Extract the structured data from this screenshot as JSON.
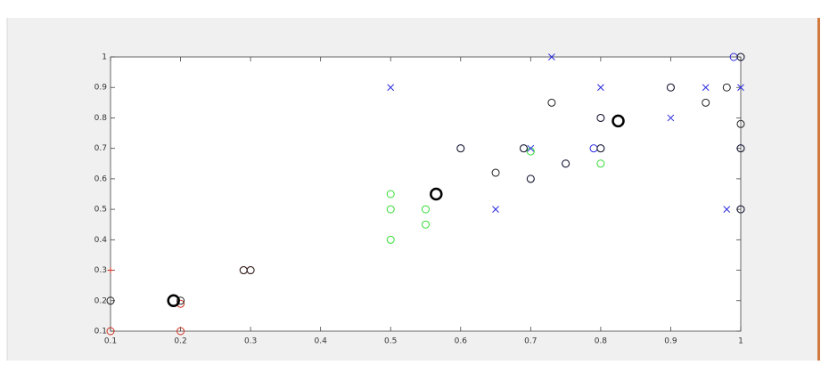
{
  "chart_data": {
    "type": "scatter",
    "xlim": [
      0.1,
      1
    ],
    "ylim": [
      0.1,
      1
    ],
    "xticks": [
      0.1,
      0.2,
      0.3,
      0.4,
      0.5,
      0.6,
      0.7,
      0.8,
      0.9,
      1
    ],
    "yticks": [
      0.1,
      0.2,
      0.3,
      0.4,
      0.5,
      0.6,
      0.7,
      0.8,
      0.9,
      1
    ],
    "grid": false,
    "series": [
      {
        "color": "#d03020",
        "marker": "o",
        "x": [
          0.1,
          0.2,
          0.2,
          0.29,
          0.3
        ],
        "values": [
          0.1,
          0.1,
          0.19,
          0.3,
          0.3
        ]
      },
      {
        "color": "#d03020",
        "marker": "+",
        "x": [
          0.1
        ],
        "values": [
          0.3
        ]
      },
      {
        "color": "#33dd33",
        "marker": "o",
        "x": [
          0.5,
          0.5,
          0.5,
          0.55,
          0.55,
          0.7,
          0.8
        ],
        "values": [
          0.55,
          0.5,
          0.4,
          0.5,
          0.45,
          0.69,
          0.65
        ]
      },
      {
        "color": "#2a2ae0",
        "marker": "x",
        "x": [
          0.5,
          0.65,
          0.73,
          0.8,
          0.9,
          0.95,
          0.98,
          1,
          0.7
        ],
        "values": [
          0.9,
          0.5,
          1,
          0.9,
          0.8,
          0.9,
          0.5,
          0.9,
          0.7
        ]
      },
      {
        "color": "#2a2ae0",
        "marker": "o",
        "x": [
          0.6,
          0.69,
          0.7,
          0.75,
          0.79,
          0.8,
          0.8,
          0.9,
          0.99,
          1,
          1,
          1
        ],
        "values": [
          0.7,
          0.7,
          0.6,
          0.65,
          0.7,
          0.7,
          0.8,
          0.9,
          1,
          1,
          0.7,
          0.5
        ]
      },
      {
        "color": "#222222",
        "marker": "o",
        "x": [
          0.1,
          0.2,
          0.29,
          0.3,
          0.6,
          0.65,
          0.69,
          0.7,
          0.73,
          0.75,
          0.8,
          0.8,
          0.9,
          0.95,
          0.98,
          1,
          1,
          1,
          1
        ],
        "values": [
          0.2,
          0.2,
          0.3,
          0.3,
          0.7,
          0.62,
          0.7,
          0.6,
          0.85,
          0.65,
          0.7,
          0.8,
          0.9,
          0.85,
          0.9,
          0.78,
          1,
          0.7,
          0.5
        ]
      },
      {
        "color": "#000000",
        "marker": "O",
        "x": [
          0.19,
          0.565,
          0.825
        ],
        "values": [
          0.2,
          0.55,
          0.79
        ]
      }
    ]
  }
}
